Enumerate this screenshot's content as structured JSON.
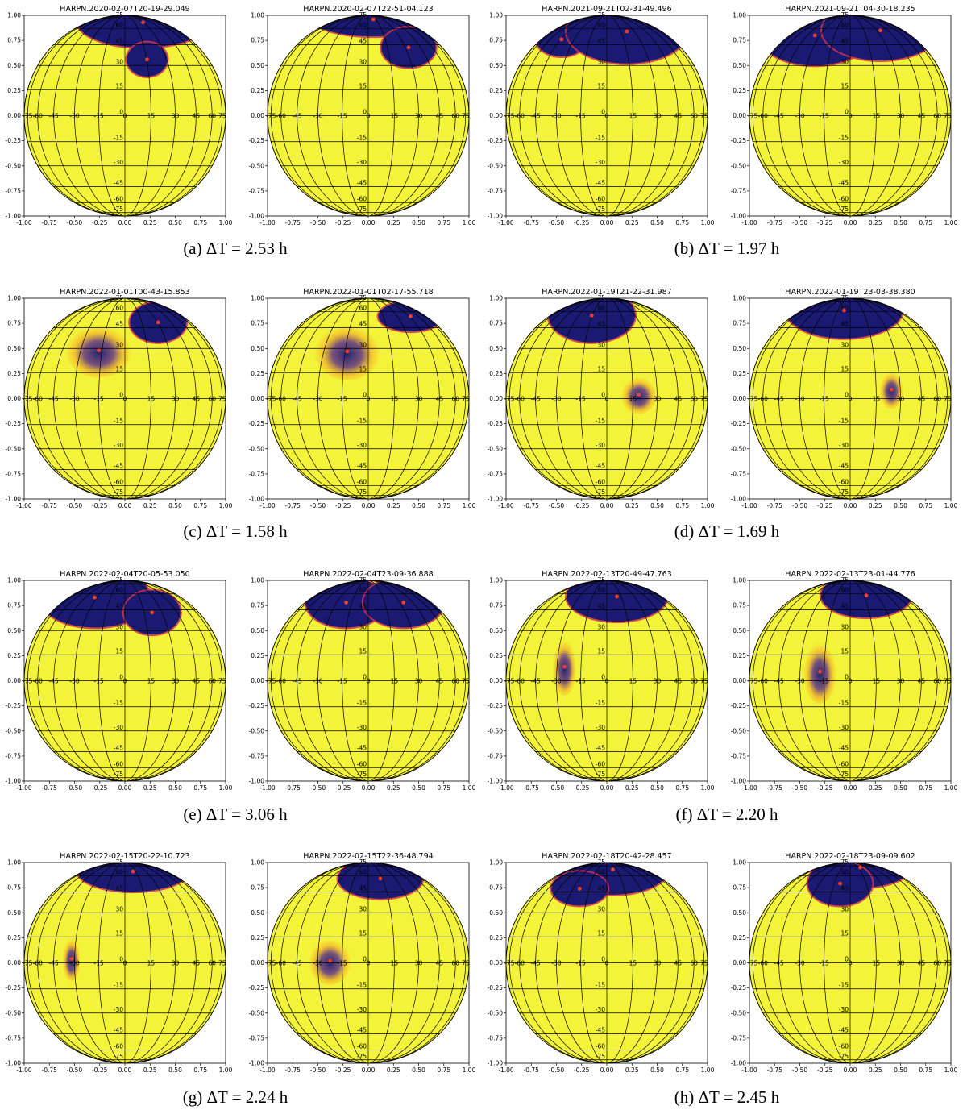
{
  "figure": {
    "captions": [
      {
        "label": "(a) ΔT = 2.53 h"
      },
      {
        "label": "(b) ΔT = 1.97 h"
      },
      {
        "label": "(c) ΔT = 1.58 h"
      },
      {
        "label": "(d) ΔT = 1.69 h"
      },
      {
        "label": "(e) ΔT = 3.06 h"
      },
      {
        "label": "(f) ΔT = 2.20 h"
      },
      {
        "label": "(g) ΔT = 2.24 h"
      },
      {
        "label": "(h) ΔT = 2.45 h"
      }
    ]
  },
  "chart_data": {
    "type": "orthographic stellar disc maps",
    "colors": {
      "photosphere": "#f3f33a",
      "spot": "#1b1a73",
      "spot_center": "#e8402a",
      "penumbra": "#f5a623",
      "grid": "#000000"
    },
    "axes": {
      "xlim": [
        -1.0,
        1.0
      ],
      "ylim": [
        -1.0,
        1.0
      ],
      "xticks": [
        "-1.00",
        "-0.75",
        "-0.50",
        "-0.25",
        "0.00",
        "0.25",
        "0.50",
        "0.75",
        "1.00"
      ],
      "yticks": [
        "1.00",
        "0.75",
        "0.50",
        "0.25",
        "0.00",
        "-0.25",
        "-0.50",
        "-0.75",
        "-1.00"
      ]
    },
    "grid": {
      "longitude_labels": [
        "-75",
        "-60",
        "-45",
        "-30",
        "-15",
        "0",
        "15",
        "30",
        "45",
        "60",
        "75"
      ],
      "latitude_labels": [
        "75",
        "60",
        "45",
        "30",
        "15",
        "0",
        "-15",
        "-30",
        "-45",
        "-60",
        "-75"
      ]
    },
    "panels": [
      {
        "title": "HARPN.2020-02-07T20-19-29.049",
        "spots": [
          {
            "x": 0.18,
            "y": 0.93,
            "w": 0.65,
            "h": 0.25,
            "solid": true
          },
          {
            "x": 0.22,
            "y": 0.56,
            "w": 0.2,
            "h": 0.17,
            "solid": true
          }
        ]
      },
      {
        "title": "HARPN.2020-02-07T22-51-04.123",
        "spots": [
          {
            "x": 0.05,
            "y": 0.96,
            "w": 0.6,
            "h": 0.17,
            "solid": true
          },
          {
            "x": 0.4,
            "y": 0.68,
            "w": 0.27,
            "h": 0.2,
            "solid": true
          }
        ]
      },
      {
        "title": "HARPN.2021-09-21T02-31-49.496",
        "spots": [
          {
            "x": -0.45,
            "y": 0.76,
            "w": 0.25,
            "h": 0.17,
            "solid": true
          },
          {
            "x": 0.2,
            "y": 0.84,
            "w": 0.6,
            "h": 0.32,
            "solid": true
          }
        ]
      },
      {
        "title": "HARPN.2021-09-21T04-30-18.235",
        "spots": [
          {
            "x": -0.35,
            "y": 0.8,
            "w": 0.55,
            "h": 0.3,
            "solid": true
          },
          {
            "x": 0.3,
            "y": 0.85,
            "w": 0.58,
            "h": 0.3,
            "solid": true
          }
        ]
      },
      {
        "title": "HARPN.2022-01-01T00-43-15.853",
        "spots": [
          {
            "x": 0.33,
            "y": 0.76,
            "w": 0.28,
            "h": 0.2,
            "solid": true
          },
          {
            "x": -0.26,
            "y": 0.48,
            "w": 0.22,
            "h": 0.17,
            "solid": false
          }
        ]
      },
      {
        "title": "HARPN.2022-01-01T02-17-55.718",
        "spots": [
          {
            "x": 0.42,
            "y": 0.82,
            "w": 0.32,
            "h": 0.15,
            "solid": true
          },
          {
            "x": -0.21,
            "y": 0.47,
            "w": 0.22,
            "h": 0.18,
            "solid": false
          }
        ]
      },
      {
        "title": "HARPN.2022-01-19T21-22-31.987",
        "spots": [
          {
            "x": -0.15,
            "y": 0.83,
            "w": 0.43,
            "h": 0.27,
            "solid": true
          },
          {
            "x": 0.32,
            "y": 0.04,
            "w": 0.12,
            "h": 0.12,
            "solid": false
          }
        ]
      },
      {
        "title": "HARPN.2022-01-19T23-03-38.380",
        "spots": [
          {
            "x": -0.06,
            "y": 0.88,
            "w": 0.58,
            "h": 0.28,
            "solid": true
          },
          {
            "x": 0.41,
            "y": 0.09,
            "w": 0.08,
            "h": 0.12,
            "solid": false
          }
        ]
      },
      {
        "title": "HARPN.2022-02-04T20-05-53.050",
        "spots": [
          {
            "x": -0.3,
            "y": 0.83,
            "w": 0.55,
            "h": 0.3,
            "solid": true
          },
          {
            "x": 0.27,
            "y": 0.68,
            "w": 0.28,
            "h": 0.22,
            "solid": true
          }
        ]
      },
      {
        "title": "HARPN.2022-02-04T23-09-36.888",
        "spots": [
          {
            "x": -0.22,
            "y": 0.78,
            "w": 0.4,
            "h": 0.25,
            "solid": true
          },
          {
            "x": 0.35,
            "y": 0.78,
            "w": 0.4,
            "h": 0.25,
            "solid": true
          }
        ]
      },
      {
        "title": "HARPN.2022-02-13T20-49-47.763",
        "spots": [
          {
            "x": 0.1,
            "y": 0.84,
            "w": 0.5,
            "h": 0.25,
            "solid": true
          },
          {
            "x": -0.42,
            "y": 0.14,
            "w": 0.08,
            "h": 0.18,
            "solid": false
          }
        ]
      },
      {
        "title": "HARPN.2022-02-13T23-01-44.776",
        "spots": [
          {
            "x": 0.16,
            "y": 0.85,
            "w": 0.45,
            "h": 0.22,
            "solid": true
          },
          {
            "x": -0.3,
            "y": 0.09,
            "w": 0.11,
            "h": 0.2,
            "solid": false
          }
        ]
      },
      {
        "title": "HARPN.2022-02-15T20-22-10.723",
        "spots": [
          {
            "x": 0.08,
            "y": 0.91,
            "w": 0.55,
            "h": 0.2,
            "solid": true
          },
          {
            "x": -0.53,
            "y": 0.04,
            "w": 0.06,
            "h": 0.14,
            "solid": false
          }
        ]
      },
      {
        "title": "HARPN.2022-02-15T22-36-48.794",
        "spots": [
          {
            "x": 0.12,
            "y": 0.84,
            "w": 0.42,
            "h": 0.2,
            "solid": true
          },
          {
            "x": -0.38,
            "y": 0.02,
            "w": 0.14,
            "h": 0.15,
            "solid": false
          }
        ]
      },
      {
        "title": "HARPN.2022-02-18T20-42-28.457",
        "spots": [
          {
            "x": 0.06,
            "y": 0.93,
            "w": 0.55,
            "h": 0.25,
            "solid": true
          },
          {
            "x": -0.27,
            "y": 0.74,
            "w": 0.28,
            "h": 0.17,
            "solid": true
          }
        ]
      },
      {
        "title": "HARPN.2022-02-18T23-09-09.602",
        "spots": [
          {
            "x": 0.1,
            "y": 0.95,
            "w": 0.5,
            "h": 0.2,
            "solid": true
          },
          {
            "x": -0.1,
            "y": 0.79,
            "w": 0.32,
            "h": 0.22,
            "solid": true
          }
        ]
      }
    ]
  }
}
